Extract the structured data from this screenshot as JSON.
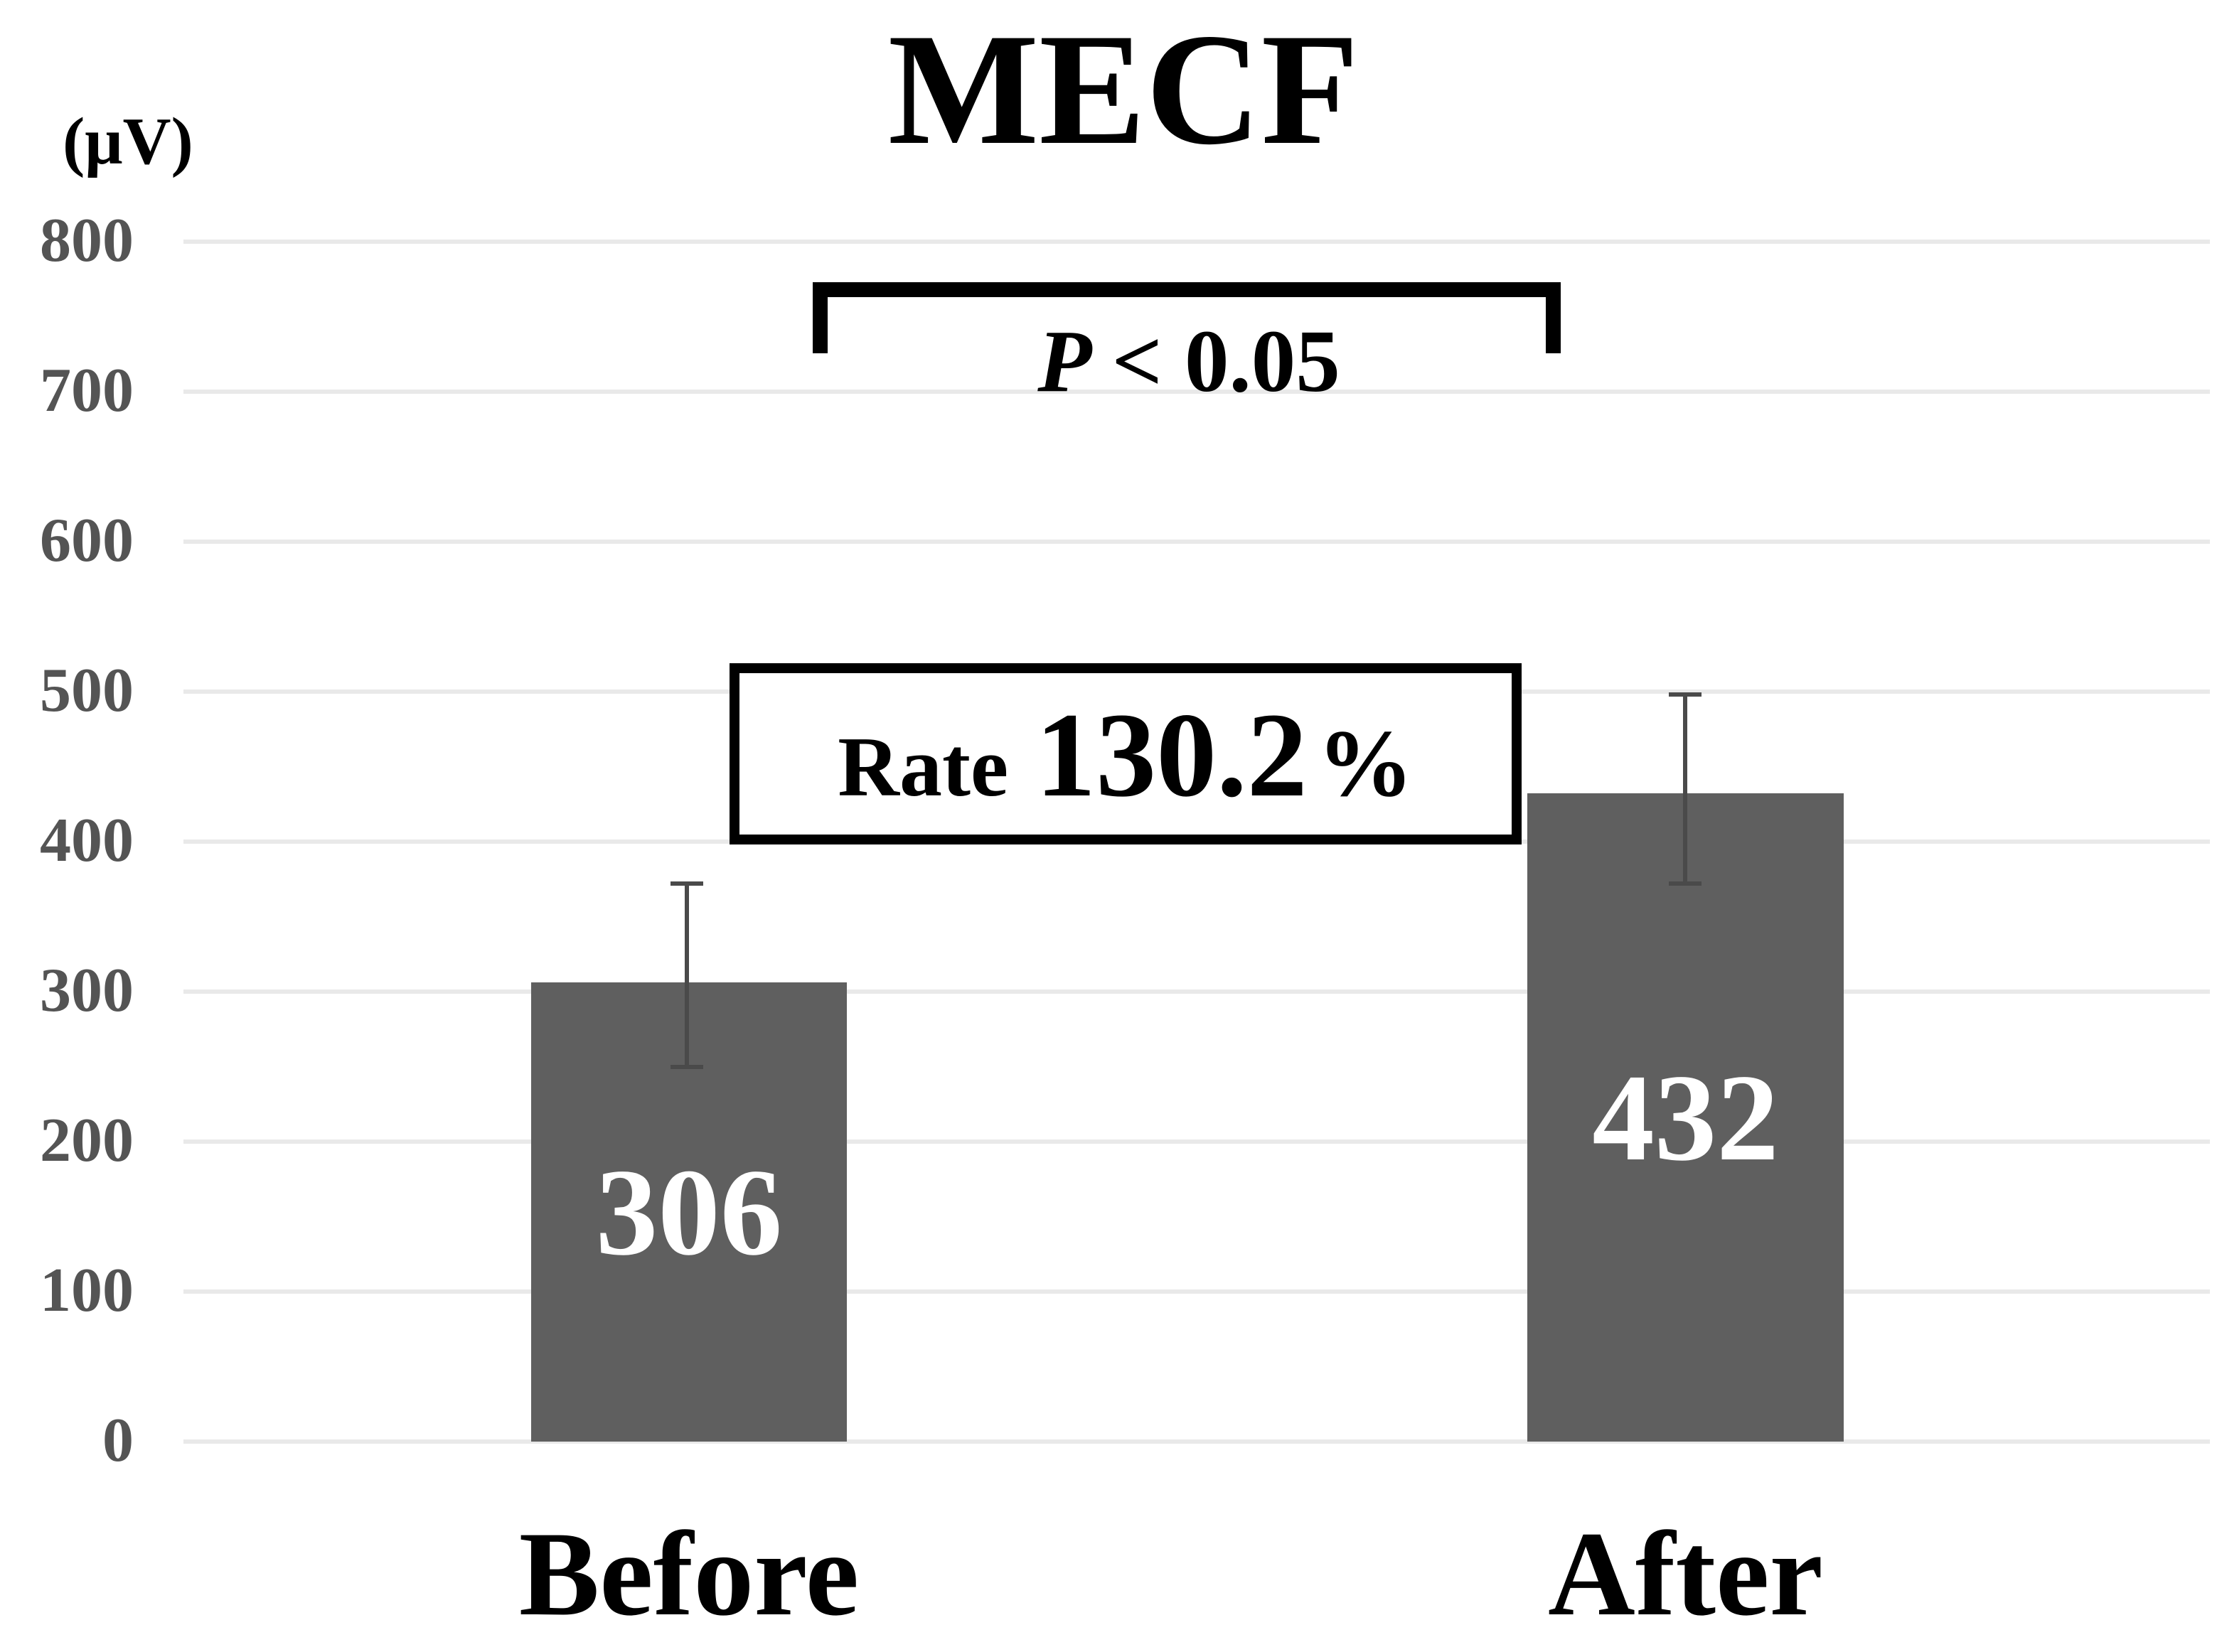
{
  "page": {
    "background": "#ffffff"
  },
  "chart_data": {
    "type": "bar",
    "title": "MECF",
    "ylabel": "(μV)",
    "xlabel": "",
    "categories": [
      "Before",
      "After"
    ],
    "values": [
      306,
      432
    ],
    "bar_value_labels": [
      "306",
      "432"
    ],
    "error_bars": [
      {
        "whisker_top": 372,
        "whisker_bottom": 250
      },
      {
        "whisker_top": 498,
        "whisker_bottom": 372
      }
    ],
    "ylim": [
      0,
      800
    ],
    "yticks": [
      800,
      700,
      600,
      500,
      400,
      300,
      200,
      100,
      0
    ],
    "grid": true,
    "legend": false,
    "annotations": {
      "significance_symbol": "P",
      "significance_rest": "< 0.05",
      "rate_label": "Rate",
      "rate_value": "130.2",
      "rate_unit": "%"
    },
    "colors": {
      "bar_fill": "#5f5f5f",
      "bar_value_text": "#ffffff",
      "gridline": "#e9e9e9",
      "tick_label": "#545454",
      "error_bar": "#4a4a4a",
      "annotation_ink": "#000000"
    }
  }
}
